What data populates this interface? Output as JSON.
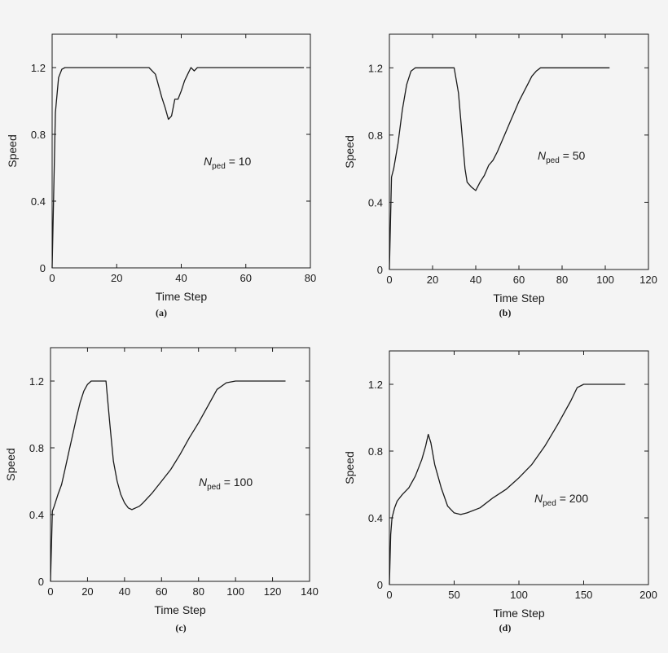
{
  "figure": {
    "background": "#f4f4f4",
    "line_color": "#1a1a1a"
  },
  "chart_data": [
    {
      "type": "line",
      "panel_label": "(a)",
      "xlabel": "Time Step",
      "ylabel": "Speed",
      "xlim": [
        0,
        80
      ],
      "ylim": [
        0,
        1.4
      ],
      "xticks": [
        0,
        20,
        40,
        60,
        80
      ],
      "yticks": [
        0,
        0.4,
        0.8,
        1.2
      ],
      "ytick_labels": [
        "0",
        "0.4",
        "0.8",
        "1.2"
      ],
      "annotation": {
        "symbol": "N",
        "subscript": "ped",
        "text": " = 10"
      },
      "x": [
        0,
        1,
        2,
        3,
        4,
        30,
        32,
        34,
        35,
        36,
        37,
        38,
        39,
        40,
        41,
        42,
        43,
        44,
        45,
        78
      ],
      "y": [
        0,
        0.93,
        1.14,
        1.19,
        1.2,
        1.2,
        1.16,
        1.02,
        0.96,
        0.89,
        0.91,
        1.01,
        1.01,
        1.06,
        1.12,
        1.16,
        1.2,
        1.18,
        1.2,
        1.2
      ]
    },
    {
      "type": "line",
      "panel_label": "(b)",
      "xlabel": "Time Step",
      "ylabel": "Speed",
      "xlim": [
        0,
        120
      ],
      "ylim": [
        0,
        1.4
      ],
      "xticks": [
        0,
        20,
        40,
        60,
        80,
        100,
        120
      ],
      "yticks": [
        0,
        0.4,
        0.8,
        1.2
      ],
      "ytick_labels": [
        "0",
        "0.4",
        "0.8",
        "1.2"
      ],
      "annotation": {
        "symbol": "N",
        "subscript": "ped",
        "text": " = 50"
      },
      "x": [
        0,
        1,
        2,
        4,
        6,
        8,
        10,
        12,
        30,
        32,
        34,
        35,
        36,
        38,
        40,
        42,
        44,
        46,
        48,
        50,
        52,
        54,
        56,
        58,
        60,
        62,
        64,
        66,
        68,
        70,
        102
      ],
      "y": [
        0,
        0.55,
        0.6,
        0.75,
        0.95,
        1.1,
        1.18,
        1.2,
        1.2,
        1.05,
        0.75,
        0.6,
        0.52,
        0.49,
        0.47,
        0.52,
        0.56,
        0.62,
        0.65,
        0.7,
        0.76,
        0.82,
        0.88,
        0.94,
        1.0,
        1.05,
        1.1,
        1.15,
        1.18,
        1.2,
        1.2
      ]
    },
    {
      "type": "line",
      "panel_label": "(c)",
      "xlabel": "Time Step",
      "ylabel": "Speed",
      "xlim": [
        0,
        140
      ],
      "ylim": [
        0,
        1.4
      ],
      "xticks": [
        0,
        20,
        40,
        60,
        80,
        100,
        120,
        140
      ],
      "yticks": [
        0,
        0.4,
        0.8,
        1.2
      ],
      "ytick_labels": [
        "0",
        "0.4",
        "0.8",
        "1.2"
      ],
      "annotation": {
        "symbol": "N",
        "subscript": "ped",
        "text": " = 100"
      },
      "x": [
        0,
        1,
        2,
        4,
        6,
        8,
        10,
        12,
        14,
        16,
        18,
        20,
        22,
        25,
        30,
        32,
        34,
        36,
        38,
        40,
        42,
        44,
        46,
        48,
        50,
        55,
        60,
        65,
        70,
        75,
        80,
        85,
        90,
        95,
        100,
        127
      ],
      "y": [
        0,
        0.42,
        0.45,
        0.52,
        0.58,
        0.68,
        0.78,
        0.88,
        0.98,
        1.07,
        1.14,
        1.18,
        1.2,
        1.2,
        1.2,
        0.95,
        0.72,
        0.6,
        0.52,
        0.47,
        0.44,
        0.43,
        0.44,
        0.45,
        0.47,
        0.53,
        0.6,
        0.67,
        0.76,
        0.86,
        0.95,
        1.05,
        1.15,
        1.19,
        1.2,
        1.2
      ]
    },
    {
      "type": "line",
      "panel_label": "(d)",
      "xlabel": "Time Step",
      "ylabel": "Speed",
      "xlim": [
        0,
        200
      ],
      "ylim": [
        0,
        1.4
      ],
      "xticks": [
        0,
        50,
        100,
        150,
        200
      ],
      "yticks": [
        0,
        0.4,
        0.8,
        1.2
      ],
      "ytick_labels": [
        "0",
        "0.4",
        "0.8",
        "1.2"
      ],
      "annotation": {
        "symbol": "N",
        "subscript": "ped",
        "text": " = 200"
      },
      "x": [
        0,
        1,
        2,
        4,
        6,
        8,
        10,
        15,
        20,
        25,
        28,
        30,
        32,
        35,
        40,
        45,
        50,
        55,
        60,
        70,
        80,
        90,
        100,
        110,
        120,
        130,
        140,
        145,
        150,
        182
      ],
      "y": [
        0,
        0.3,
        0.4,
        0.46,
        0.5,
        0.52,
        0.54,
        0.58,
        0.65,
        0.75,
        0.83,
        0.9,
        0.85,
        0.72,
        0.58,
        0.47,
        0.43,
        0.42,
        0.43,
        0.46,
        0.52,
        0.57,
        0.64,
        0.72,
        0.83,
        0.96,
        1.1,
        1.18,
        1.2,
        1.2
      ]
    }
  ]
}
